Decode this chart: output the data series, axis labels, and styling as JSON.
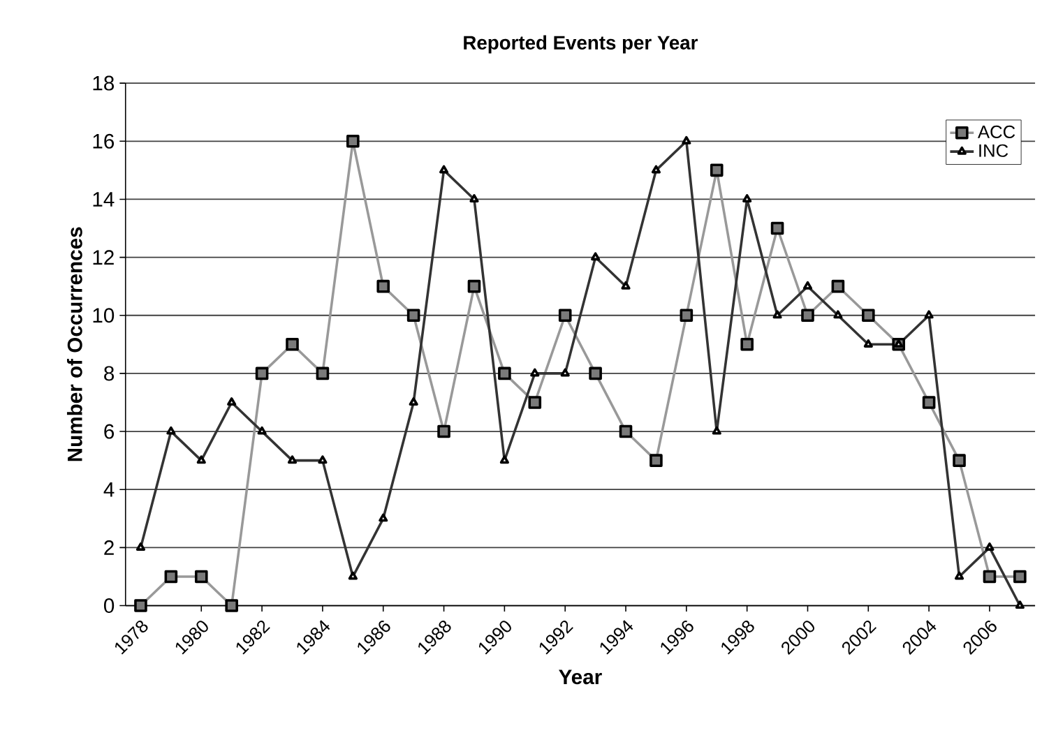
{
  "chart_data": {
    "type": "line",
    "title": "Reported Events per Year",
    "xlabel": "Year",
    "ylabel": "Number of Occurrences",
    "x": [
      1978,
      1979,
      1980,
      1981,
      1982,
      1983,
      1984,
      1985,
      1986,
      1987,
      1988,
      1989,
      1990,
      1991,
      1992,
      1993,
      1994,
      1995,
      1996,
      1997,
      1998,
      1999,
      2000,
      2001,
      2002,
      2003,
      2004,
      2005,
      2006,
      2007
    ],
    "series": [
      {
        "name": "ACC",
        "color": "#999999",
        "marker": "square",
        "values": [
          0,
          1,
          1,
          0,
          8,
          9,
          8,
          16,
          11,
          10,
          6,
          11,
          8,
          7,
          10,
          8,
          6,
          5,
          10,
          15,
          9,
          13,
          10,
          11,
          10,
          9,
          7,
          5,
          1,
          1
        ]
      },
      {
        "name": "INC",
        "color": "#333333",
        "marker": "triangle",
        "values": [
          2,
          6,
          5,
          7,
          6,
          5,
          5,
          1,
          3,
          7,
          15,
          14,
          5,
          8,
          8,
          12,
          11,
          15,
          16,
          6,
          14,
          10,
          11,
          10,
          9,
          9,
          10,
          1,
          2,
          0
        ]
      }
    ],
    "xlim": [
      1977.5,
      2007.5
    ],
    "xticks": [
      1978,
      1980,
      1982,
      1984,
      1986,
      1988,
      1990,
      1992,
      1994,
      1996,
      1998,
      2000,
      2002,
      2004,
      2006
    ],
    "ylim": [
      0,
      18
    ],
    "yticks": [
      0,
      2,
      4,
      6,
      8,
      10,
      12,
      14,
      16,
      18
    ],
    "grid": "y",
    "legend": "top right",
    "line_style": "solid"
  }
}
